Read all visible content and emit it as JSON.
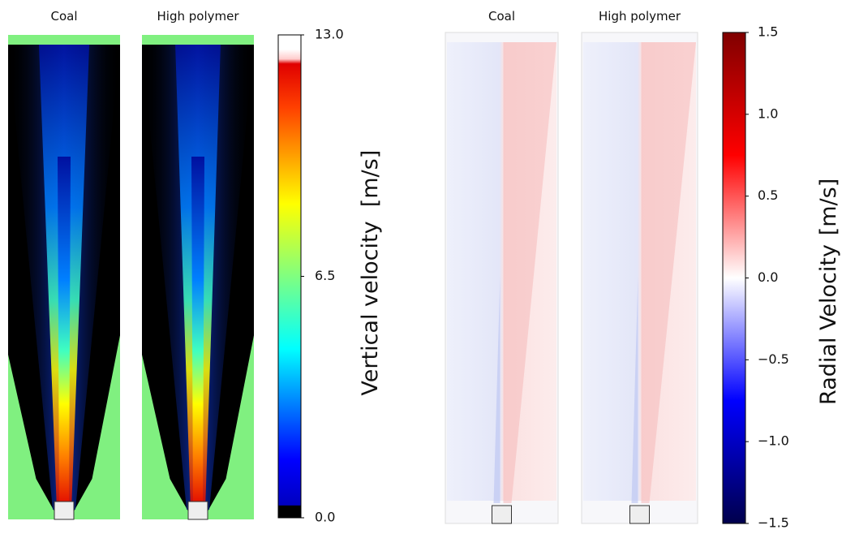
{
  "chart_data": [
    {
      "type": "heatmap",
      "panels": [
        "Coal",
        "High polymer"
      ],
      "colorbar_label": "Vertical velocity",
      "colorbar_unit": "[m/s]",
      "colormap": "jet",
      "clim": [
        0,
        13
      ],
      "cticks": [
        {
          "value": 0,
          "label": "0.0"
        },
        6.5,
        {
          "value": 13,
          "label": "13.0"
        }
      ]
    },
    {
      "type": "heatmap",
      "panels": [
        "Coal",
        "High polymer"
      ],
      "colorbar_label": "Radial Velocity",
      "colorbar_unit": "[m/s]",
      "colormap": "seismic",
      "clim": [
        -1.5,
        1.5
      ],
      "cticks": [
        {
          "value": -1.5,
          "label": "−1.5"
        },
        {
          "value": -1,
          "label": "−1.0"
        },
        {
          "value": -0.5,
          "label": "−0.5"
        },
        {
          "value": 0,
          "label": "0.0"
        },
        0.5,
        {
          "value": 1,
          "label": "1.0"
        },
        1.5
      ]
    }
  ]
}
